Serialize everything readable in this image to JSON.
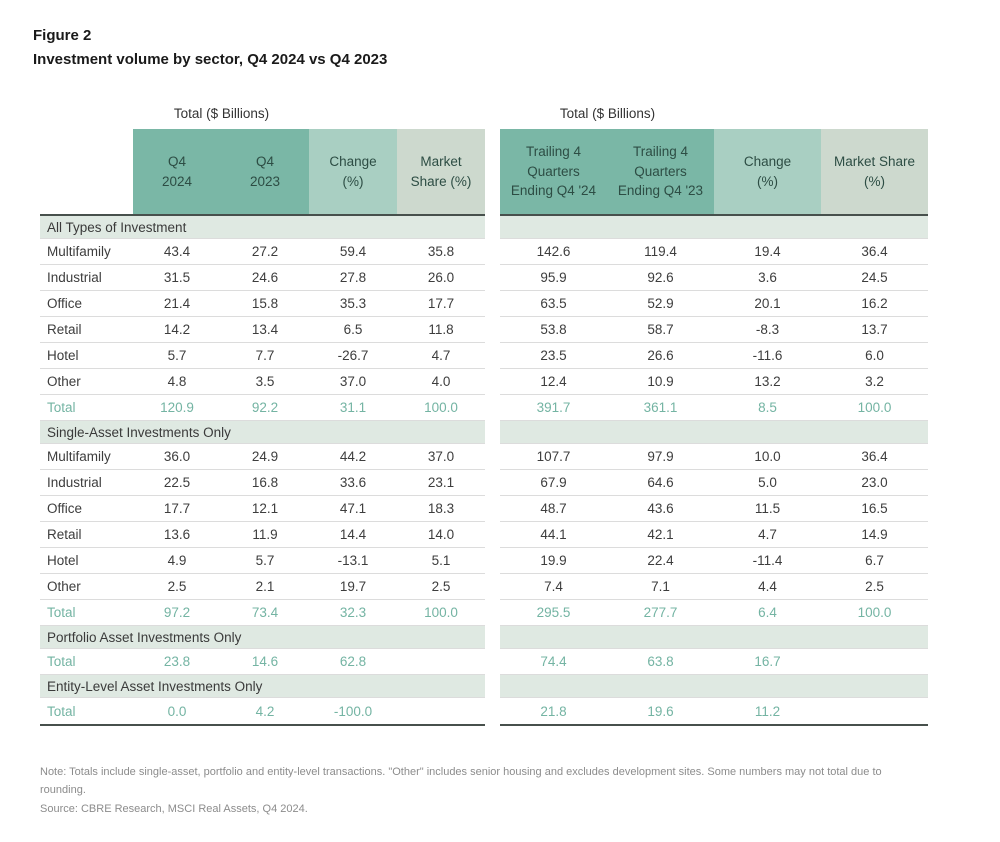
{
  "figure": {
    "label": "Figure 2",
    "title": "Investment volume by sector, Q4 2024 vs Q4 2023"
  },
  "colors": {
    "header_dark_teal": "#7ab7a6",
    "header_medium_teal": "#a9cfc2",
    "header_light_green": "#cdd9ce",
    "section_band": "#dfe9e2",
    "total_text": "#74b4a3",
    "body_text": "#3d3d3d",
    "header_text": "#2d4d44"
  },
  "chart_data": [
    {
      "type": "table",
      "title": "Total ($ Billions)",
      "has_row_labels": true,
      "columns": [
        "Q4 2024",
        "Q4 2023",
        "Change (%)",
        "Market Share (%)"
      ],
      "column_lines": [
        [
          "Q4",
          "2024"
        ],
        [
          "Q4",
          "2023"
        ],
        [
          "Change",
          "(%)"
        ],
        [
          "Market",
          "Share (%)"
        ]
      ],
      "sections": [
        {
          "label": "All Types of Investment",
          "rows": [
            {
              "label": "Multifamily",
              "values": [
                "43.4",
                "27.2",
                "59.4",
                "35.8"
              ]
            },
            {
              "label": "Industrial",
              "values": [
                "31.5",
                "24.6",
                "27.8",
                "26.0"
              ]
            },
            {
              "label": "Office",
              "values": [
                "21.4",
                "15.8",
                "35.3",
                "17.7"
              ]
            },
            {
              "label": "Retail",
              "values": [
                "14.2",
                "13.4",
                "6.5",
                "11.8"
              ]
            },
            {
              "label": "Hotel",
              "values": [
                "5.7",
                "7.7",
                "-26.7",
                "4.7"
              ]
            },
            {
              "label": "Other",
              "values": [
                "4.8",
                "3.5",
                "37.0",
                "4.0"
              ]
            },
            {
              "label": "Total",
              "values": [
                "120.9",
                "92.2",
                "31.1",
                "100.0"
              ],
              "is_total": true
            }
          ]
        },
        {
          "label": "Single-Asset Investments Only",
          "rows": [
            {
              "label": "Multifamily",
              "values": [
                "36.0",
                "24.9",
                "44.2",
                "37.0"
              ]
            },
            {
              "label": "Industrial",
              "values": [
                "22.5",
                "16.8",
                "33.6",
                "23.1"
              ]
            },
            {
              "label": "Office",
              "values": [
                "17.7",
                "12.1",
                "47.1",
                "18.3"
              ]
            },
            {
              "label": "Retail",
              "values": [
                "13.6",
                "11.9",
                "14.4",
                "14.0"
              ]
            },
            {
              "label": "Hotel",
              "values": [
                "4.9",
                "5.7",
                "-13.1",
                "5.1"
              ]
            },
            {
              "label": "Other",
              "values": [
                "2.5",
                "2.1",
                "19.7",
                "2.5"
              ]
            },
            {
              "label": "Total",
              "values": [
                "97.2",
                "73.4",
                "32.3",
                "100.0"
              ],
              "is_total": true
            }
          ]
        },
        {
          "label": "Portfolio Asset Investments Only",
          "rows": [
            {
              "label": "Total",
              "values": [
                "23.8",
                "14.6",
                "62.8",
                ""
              ],
              "is_total": true
            }
          ]
        },
        {
          "label": "Entity-Level Asset Investments Only",
          "rows": [
            {
              "label": "Total",
              "values": [
                "0.0",
                "4.2",
                "-100.0",
                ""
              ],
              "is_total": true
            }
          ]
        }
      ]
    },
    {
      "type": "table",
      "title": "Total ($ Billions)",
      "has_row_labels": false,
      "columns": [
        "Trailing 4 Quarters Ending Q4 '24",
        "Trailing 4 Quarters Ending Q4 '23",
        "Change (%)",
        "Market Share (%)"
      ],
      "column_lines": [
        [
          "Trailing 4",
          "Quarters",
          "Ending Q4 '24"
        ],
        [
          "Trailing 4",
          "Quarters",
          "Ending Q4 '23"
        ],
        [
          "Change",
          "(%)"
        ],
        [
          "Market Share",
          "(%)"
        ]
      ],
      "sections": [
        {
          "label": "",
          "rows": [
            {
              "values": [
                "142.6",
                "119.4",
                "19.4",
                "36.4"
              ]
            },
            {
              "values": [
                "95.9",
                "92.6",
                "3.6",
                "24.5"
              ]
            },
            {
              "values": [
                "63.5",
                "52.9",
                "20.1",
                "16.2"
              ]
            },
            {
              "values": [
                "53.8",
                "58.7",
                "-8.3",
                "13.7"
              ]
            },
            {
              "values": [
                "23.5",
                "26.6",
                "-11.6",
                "6.0"
              ]
            },
            {
              "values": [
                "12.4",
                "10.9",
                "13.2",
                "3.2"
              ]
            },
            {
              "values": [
                "391.7",
                "361.1",
                "8.5",
                "100.0"
              ],
              "is_total": true
            }
          ]
        },
        {
          "label": "",
          "rows": [
            {
              "values": [
                "107.7",
                "97.9",
                "10.0",
                "36.4"
              ]
            },
            {
              "values": [
                "67.9",
                "64.6",
                "5.0",
                "23.0"
              ]
            },
            {
              "values": [
                "48.7",
                "43.6",
                "11.5",
                "16.5"
              ]
            },
            {
              "values": [
                "44.1",
                "42.1",
                "4.7",
                "14.9"
              ]
            },
            {
              "values": [
                "19.9",
                "22.4",
                "-11.4",
                "6.7"
              ]
            },
            {
              "values": [
                "7.4",
                "7.1",
                "4.4",
                "2.5"
              ]
            },
            {
              "values": [
                "295.5",
                "277.7",
                "6.4",
                "100.0"
              ],
              "is_total": true
            }
          ]
        },
        {
          "label": "",
          "rows": [
            {
              "values": [
                "74.4",
                "63.8",
                "16.7",
                ""
              ],
              "is_total": true
            }
          ]
        },
        {
          "label": "",
          "rows": [
            {
              "values": [
                "21.8",
                "19.6",
                "11.2",
                ""
              ],
              "is_total": true
            }
          ]
        }
      ]
    }
  ],
  "notes": {
    "note": "Note: Totals include single-asset, portfolio and entity-level transactions. \"Other\" includes senior housing and excludes development sites. Some numbers may not total due to rounding.",
    "source": "Source: CBRE Research, MSCI Real Assets, Q4 2024."
  }
}
